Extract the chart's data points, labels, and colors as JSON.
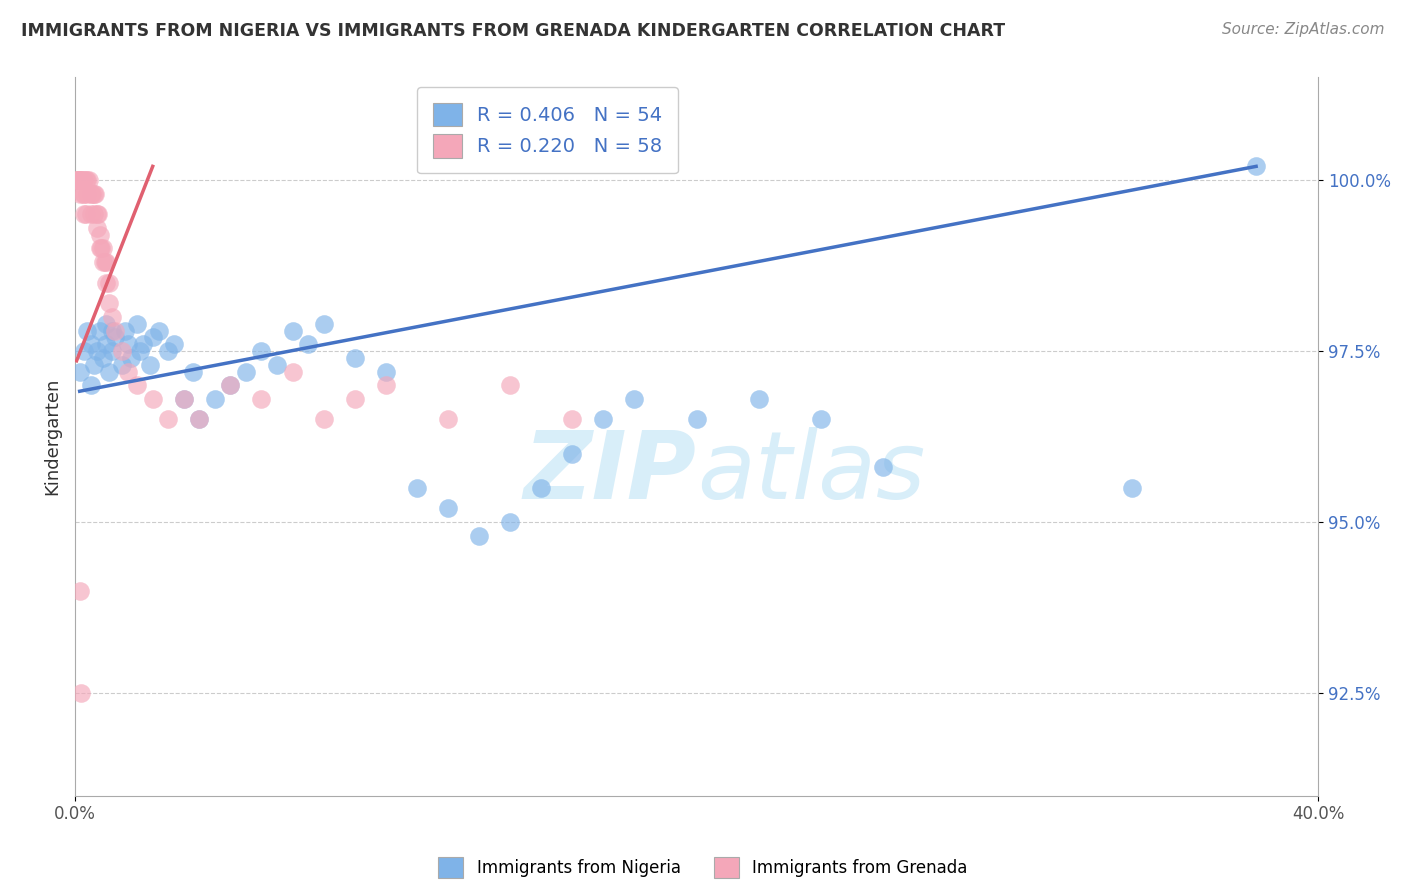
{
  "title": "IMMIGRANTS FROM NIGERIA VS IMMIGRANTS FROM GRENADA KINDERGARTEN CORRELATION CHART",
  "source": "Source: ZipAtlas.com",
  "ylabel": "Kindergarten",
  "xlim": [
    0.0,
    40.0
  ],
  "ylim": [
    91.0,
    101.5
  ],
  "y_ticks": [
    92.5,
    95.0,
    97.5,
    100.0
  ],
  "y_tick_labels": [
    "92.5%",
    "95.0%",
    "97.5%",
    "100.0%"
  ],
  "legend_r_nigeria": "R = 0.406",
  "legend_n_nigeria": "N = 54",
  "legend_r_grenada": "R = 0.220",
  "legend_n_grenada": "N = 58",
  "color_nigeria": "#7fb3e8",
  "color_grenada": "#f4a7b9",
  "color_nigeria_line": "#4472c4",
  "color_grenada_line": "#e06070",
  "legend_text_color": "#4472c4",
  "watermark_color": "#d8eef9",
  "nigeria_x": [
    0.15,
    0.3,
    0.4,
    0.5,
    0.5,
    0.6,
    0.7,
    0.8,
    0.9,
    1.0,
    1.0,
    1.1,
    1.2,
    1.2,
    1.3,
    1.5,
    1.6,
    1.7,
    1.8,
    2.0,
    2.1,
    2.2,
    2.4,
    2.5,
    2.7,
    3.0,
    3.2,
    3.5,
    3.8,
    4.0,
    4.5,
    5.0,
    5.5,
    6.0,
    6.5,
    7.0,
    7.5,
    8.0,
    9.0,
    10.0,
    11.0,
    12.0,
    13.0,
    14.0,
    15.0,
    16.0,
    17.0,
    18.0,
    20.0,
    22.0,
    24.0,
    26.0,
    34.0,
    38.0
  ],
  "nigeria_y": [
    97.2,
    97.5,
    97.8,
    97.0,
    97.6,
    97.3,
    97.5,
    97.8,
    97.4,
    97.6,
    97.9,
    97.2,
    97.8,
    97.5,
    97.7,
    97.3,
    97.8,
    97.6,
    97.4,
    97.9,
    97.5,
    97.6,
    97.3,
    97.7,
    97.8,
    97.5,
    97.6,
    96.8,
    97.2,
    96.5,
    96.8,
    97.0,
    97.2,
    97.5,
    97.3,
    97.8,
    97.6,
    97.9,
    97.4,
    97.2,
    95.5,
    95.2,
    94.8,
    95.0,
    95.5,
    96.0,
    96.5,
    96.8,
    96.5,
    96.8,
    96.5,
    95.8,
    95.5,
    100.2
  ],
  "grenada_x": [
    0.05,
    0.08,
    0.1,
    0.1,
    0.12,
    0.15,
    0.15,
    0.2,
    0.2,
    0.25,
    0.25,
    0.3,
    0.3,
    0.3,
    0.35,
    0.35,
    0.4,
    0.4,
    0.45,
    0.5,
    0.5,
    0.55,
    0.6,
    0.6,
    0.65,
    0.7,
    0.7,
    0.75,
    0.8,
    0.8,
    0.85,
    0.9,
    0.9,
    0.95,
    1.0,
    1.0,
    1.1,
    1.1,
    1.2,
    1.3,
    1.5,
    1.7,
    2.0,
    2.5,
    3.0,
    3.5,
    4.0,
    5.0,
    6.0,
    7.0,
    8.0,
    9.0,
    10.0,
    12.0,
    14.0,
    16.0,
    0.15,
    0.2
  ],
  "grenada_y": [
    100.0,
    100.0,
    100.0,
    100.0,
    100.0,
    100.0,
    99.8,
    100.0,
    100.0,
    99.8,
    100.0,
    99.5,
    99.8,
    100.0,
    100.0,
    99.5,
    99.8,
    100.0,
    100.0,
    99.8,
    99.5,
    99.8,
    99.5,
    99.8,
    99.8,
    99.3,
    99.5,
    99.5,
    99.2,
    99.0,
    99.0,
    99.0,
    98.8,
    98.8,
    98.5,
    98.8,
    98.5,
    98.2,
    98.0,
    97.8,
    97.5,
    97.2,
    97.0,
    96.8,
    96.5,
    96.8,
    96.5,
    97.0,
    96.8,
    97.2,
    96.5,
    96.8,
    97.0,
    96.5,
    97.0,
    96.5,
    94.0,
    92.5
  ]
}
